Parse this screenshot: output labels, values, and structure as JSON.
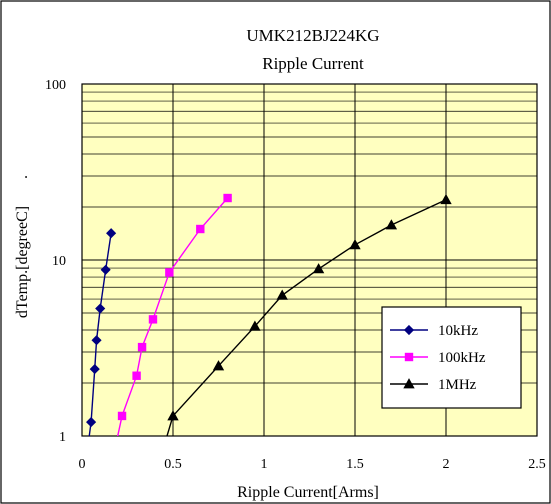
{
  "chart_data": {
    "type": "line",
    "title": "UMK212BJ224KG",
    "subtitle": "Ripple Current",
    "xlabel": "Ripple Current[Arms]",
    "ylabel": "dTemp.[degreeC]",
    "ylabel_suffix": ".",
    "xlim": [
      0,
      2.5
    ],
    "ylim": [
      1,
      100
    ],
    "yscale": "log",
    "xticks": [
      0,
      0.5,
      1,
      1.5,
      2,
      2.5
    ],
    "xtick_labels": [
      "0",
      "0.5",
      "1",
      "1.5",
      "2",
      "2.5"
    ],
    "yticks": [
      1,
      10,
      100
    ],
    "ytick_labels": [
      "1",
      "10",
      "100"
    ],
    "grid": true,
    "legend_position": "bottom-right",
    "series": [
      {
        "name": "10kHz",
        "color": "#000080",
        "marker": "diamond",
        "x": [
          0.02,
          0.05,
          0.07,
          0.08,
          0.1,
          0.13,
          0.16
        ],
        "y": [
          0.7,
          1.2,
          2.4,
          3.5,
          5.3,
          8.8,
          14.2
        ]
      },
      {
        "name": "100kHz",
        "color": "#ff00ff",
        "marker": "square",
        "x": [
          0.15,
          0.22,
          0.3,
          0.33,
          0.39,
          0.48,
          0.65,
          0.8
        ],
        "y": [
          0.6,
          1.3,
          2.2,
          3.2,
          4.6,
          8.5,
          15.0,
          22.5
        ]
      },
      {
        "name": "1MHz",
        "color": "#000000",
        "marker": "triangle",
        "x": [
          0.38,
          0.5,
          0.75,
          0.95,
          1.1,
          1.3,
          1.5,
          1.7,
          2.0
        ],
        "y": [
          0.5,
          1.3,
          2.5,
          4.2,
          6.3,
          8.9,
          12.2,
          15.8,
          22.0
        ]
      }
    ]
  }
}
